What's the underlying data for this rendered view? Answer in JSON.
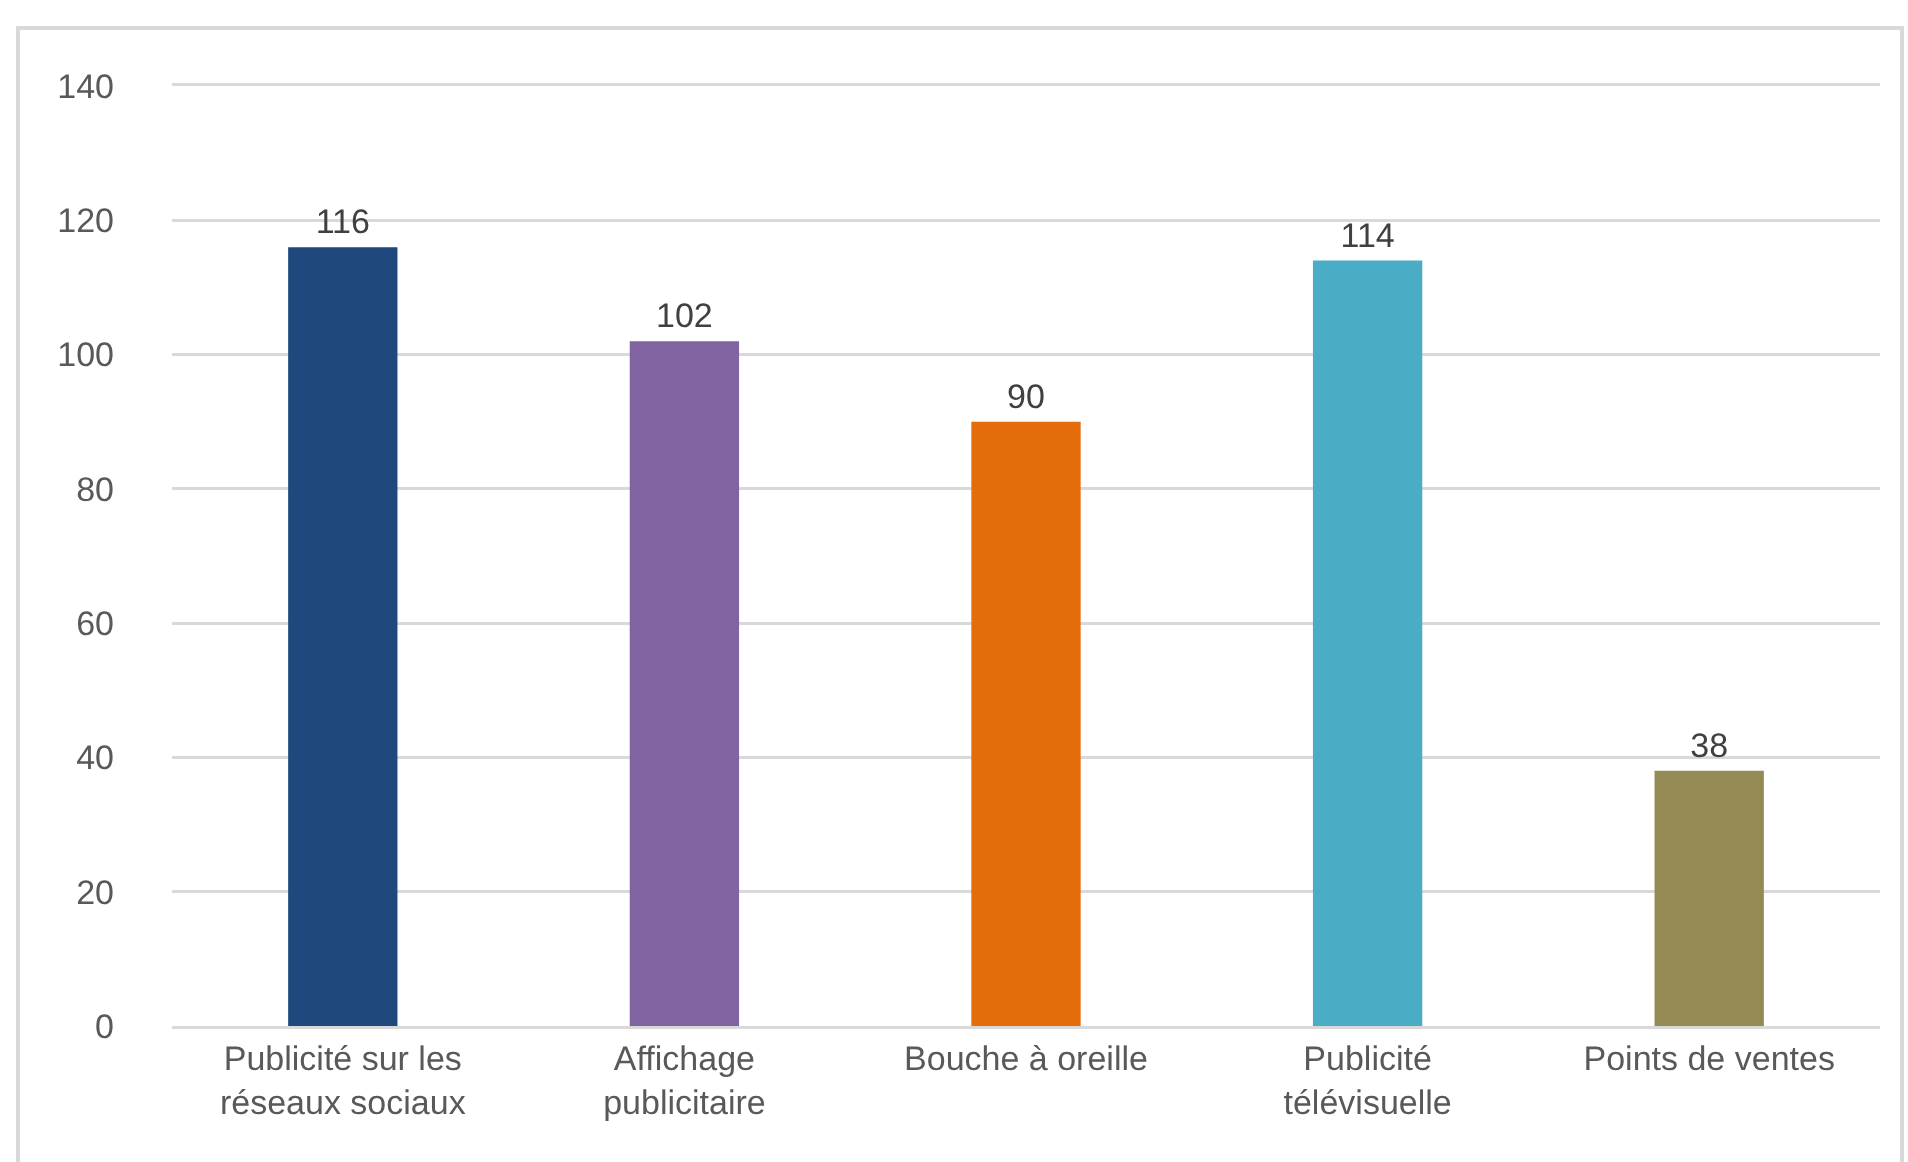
{
  "chart_data": {
    "type": "bar",
    "categories": [
      "Publicité sur les réseaux sociaux",
      "Affichage publicitaire",
      "Bouche à oreille",
      "Publicité télévisuelle",
      "Points de ventes"
    ],
    "values": [
      116,
      102,
      90,
      114,
      38
    ],
    "colors": [
      "#1f497d",
      "#8064a2",
      "#e46c0a",
      "#4bacc6",
      "#948a54"
    ],
    "ylim": [
      0,
      140
    ],
    "yticks": [
      0,
      20,
      40,
      60,
      80,
      100,
      120,
      140
    ],
    "grid": "y",
    "data_labels": true
  }
}
